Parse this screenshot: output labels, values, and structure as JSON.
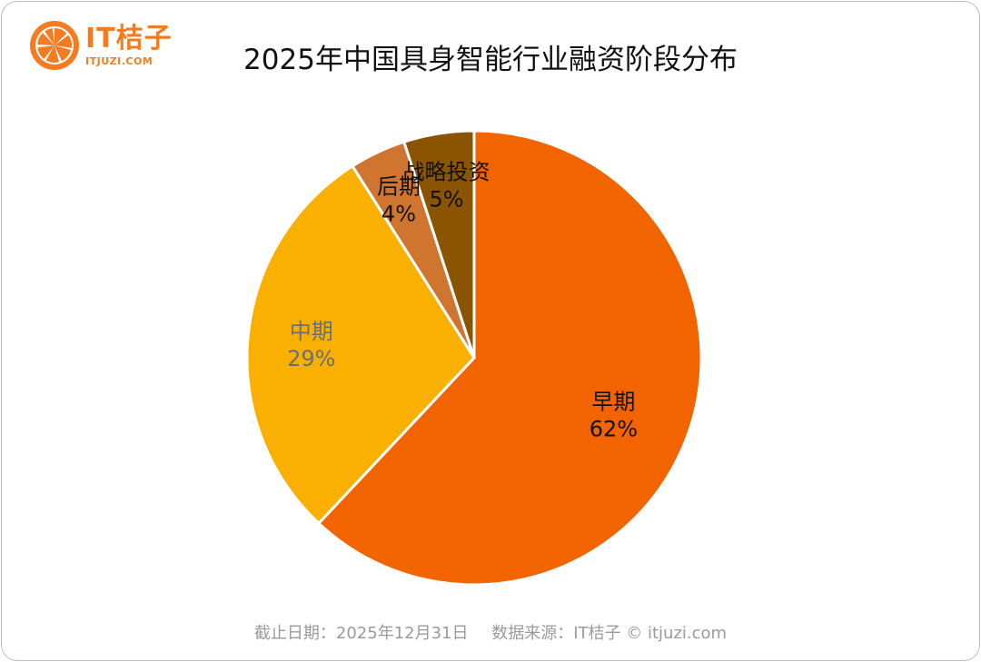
{
  "brand": {
    "name": "IT桔子",
    "url": "ITJUZI.COM",
    "color": "#f47b20"
  },
  "title": "2025年中国具身智能行业融资阶段分布",
  "footer": {
    "date_note": "截止日期：2025年12月31日",
    "source_note": "数据来源：IT桔子 © itjuzi.com"
  },
  "chart_data": {
    "type": "pie",
    "title": "2025年中国具身智能行业融资阶段分布",
    "start": "12 o'clock, clockwise",
    "slices": [
      {
        "label": "早期",
        "value": 62,
        "display": "62%",
        "color": "#f26400",
        "label_color": "#111111"
      },
      {
        "label": "中期",
        "value": 29,
        "display": "29%",
        "color": "#f9b000",
        "label_color": "#6e6e6e"
      },
      {
        "label": "后期",
        "value": 4,
        "display": "4%",
        "color": "#d0752f",
        "label_color": "#111111"
      },
      {
        "label": "战略投资",
        "value": 5,
        "display": "5%",
        "color": "#8a5400",
        "label_color": "#111111"
      }
    ],
    "legend": "none"
  }
}
